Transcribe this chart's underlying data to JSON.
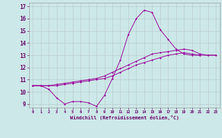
{
  "xlabel": "Windchill (Refroidissement éolien,°C)",
  "background_color": "#cce8e8",
  "line_color": "#990099",
  "grid_color": "#bbcccc",
  "xlim": [
    -0.5,
    23.5
  ],
  "ylim": [
    8.7,
    17.3
  ],
  "yticks": [
    9,
    10,
    11,
    12,
    13,
    14,
    15,
    16,
    17
  ],
  "xticks": [
    0,
    1,
    2,
    3,
    4,
    5,
    6,
    7,
    8,
    9,
    10,
    11,
    12,
    13,
    14,
    15,
    16,
    17,
    18,
    19,
    20,
    21,
    22,
    23
  ],
  "series1_x": [
    0,
    1,
    2,
    3,
    4,
    5,
    6,
    7,
    8,
    9,
    10,
    11,
    12,
    13,
    14,
    15,
    16,
    17,
    18,
    19,
    20,
    21
  ],
  "series1_y": [
    10.5,
    10.5,
    10.2,
    9.5,
    9.0,
    9.2,
    9.2,
    9.1,
    8.8,
    9.7,
    11.1,
    12.6,
    14.7,
    16.0,
    16.7,
    16.5,
    15.1,
    14.3,
    13.5,
    13.1,
    13.0,
    13.0
  ],
  "series2_x": [
    0,
    1,
    2,
    3,
    4,
    5,
    6,
    7,
    8,
    9,
    10,
    11,
    12,
    13,
    14,
    15,
    16,
    17,
    18,
    19,
    20,
    21,
    22,
    23
  ],
  "series2_y": [
    10.5,
    10.5,
    10.5,
    10.6,
    10.7,
    10.8,
    10.9,
    11.0,
    11.1,
    11.3,
    11.6,
    11.9,
    12.2,
    12.5,
    12.8,
    13.1,
    13.2,
    13.3,
    13.4,
    13.5,
    13.4,
    13.1,
    13.0,
    13.0
  ],
  "series3_x": [
    0,
    1,
    2,
    3,
    4,
    5,
    6,
    7,
    8,
    9,
    10,
    11,
    12,
    13,
    14,
    15,
    16,
    17,
    18,
    19,
    20,
    21,
    22,
    23
  ],
  "series3_y": [
    10.5,
    10.5,
    10.5,
    10.5,
    10.6,
    10.7,
    10.8,
    10.9,
    11.0,
    11.1,
    11.3,
    11.6,
    11.9,
    12.2,
    12.4,
    12.6,
    12.8,
    13.0,
    13.1,
    13.2,
    13.1,
    13.0,
    13.0,
    13.0
  ]
}
